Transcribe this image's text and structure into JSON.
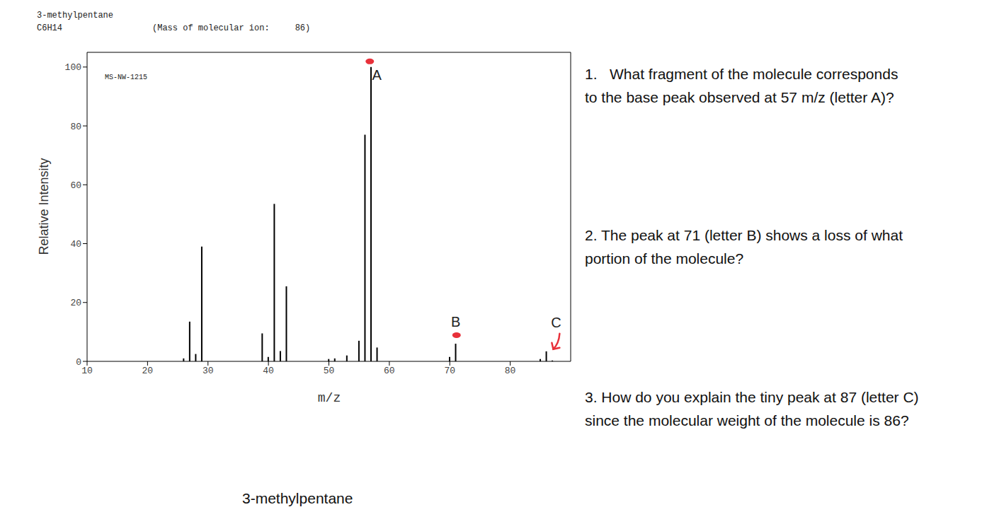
{
  "chart_data": {
    "type": "bar",
    "title": "3-methylpentane",
    "subtitle": "C6H14",
    "molecular_ion_note": "(Mass of molecular ion:     86)",
    "spectrum_id": "MS-NW-1215",
    "x_label": "m/z",
    "y_label": "Relative Intensity",
    "x": [
      26,
      27,
      28,
      29,
      39,
      40,
      41,
      42,
      43,
      50,
      51,
      53,
      55,
      56,
      57,
      58,
      70,
      71,
      85,
      86,
      87
    ],
    "values": [
      1,
      13.5,
      2.5,
      39,
      9.5,
      1.5,
      53.5,
      3.5,
      25.5,
      0.8,
      1,
      2,
      7,
      77,
      100,
      4.7,
      1.5,
      6,
      0.8,
      3.4,
      0.3
    ],
    "color": "#000000",
    "xlim": [
      10,
      90
    ],
    "xticks": [
      10,
      20,
      30,
      40,
      50,
      60,
      70,
      80
    ],
    "ylim": [
      0,
      105
    ],
    "yticks": [
      0,
      20,
      40,
      60,
      80,
      100
    ],
    "annotations": [
      {
        "text": "A",
        "x": 57,
        "marker": "dot",
        "color": "#e8303a"
      },
      {
        "text": "B",
        "x": 71,
        "marker": "dot",
        "color": "#e8303a"
      },
      {
        "text": "C",
        "x": 87,
        "marker": "arrow",
        "color": "#e8303a"
      }
    ]
  },
  "questions": [
    [
      "1.   What fragment of the molecule corresponds",
      "to the base peak observed at 57 m/z (letter A)?"
    ],
    [
      "2. The peak at 71 (letter B) shows a loss of what",
      "portion of the molecule?"
    ],
    [
      "3. How do you explain the tiny peak at 87 (letter C)",
      "since the molecular weight of the molecule is 86?"
    ]
  ],
  "caption": "3-methylpentane"
}
